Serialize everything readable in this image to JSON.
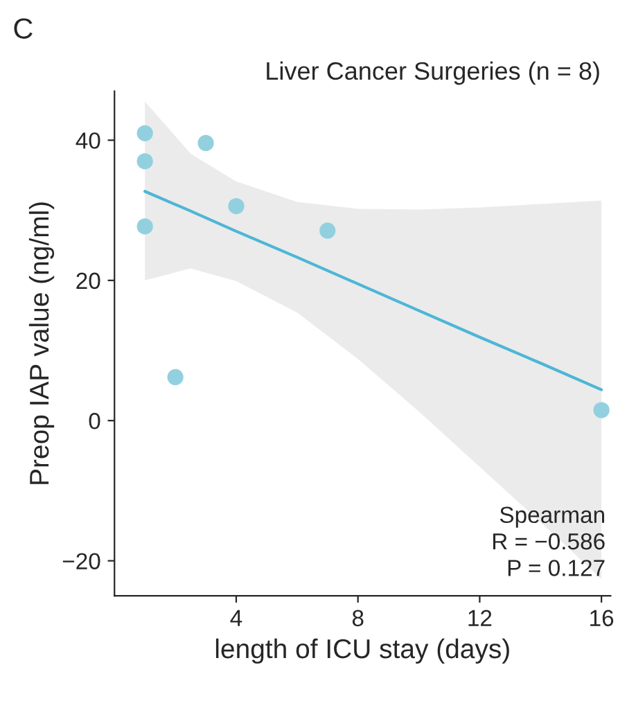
{
  "chart_data": {
    "type": "scatter",
    "title": "Liver Cancer Surgeries (n = 8)",
    "xlabel": "length of ICU stay (days)",
    "ylabel": "Preop IAP value (ng/ml)",
    "series": [
      {
        "color": "#92d0df",
        "x": [
          1,
          1,
          1,
          2,
          3,
          4,
          7,
          16
        ],
        "values": [
          41,
          37,
          27.7,
          6.2,
          39.6,
          30.6,
          27.1,
          1.5
        ]
      },
      {
        "type": "line",
        "marker": "none",
        "color": "#4db6d6",
        "x": [
          1,
          2.5,
          4,
          6,
          8,
          10,
          12,
          14,
          16
        ],
        "values": [
          32.7,
          29.9,
          27.0,
          23.3,
          19.5,
          15.7,
          11.9,
          8.2,
          4.4
        ],
        "lower": [
          20.0,
          21.7,
          19.9,
          15.4,
          8.8,
          1.3,
          -6.6,
          -14.5,
          -22.6
        ],
        "upper": [
          45.5,
          38.1,
          34.1,
          31.2,
          30.2,
          30.1,
          30.4,
          30.9,
          31.4
        ]
      }
    ],
    "xlim": [
      0,
      16.3
    ],
    "xticks": [
      4,
      8,
      12,
      16
    ],
    "ylim": [
      -25,
      47
    ],
    "yticks": [
      -20,
      0,
      20,
      40
    ],
    "grid": false,
    "marker": "circle",
    "annotations": [
      "C",
      "Spearman\nR = −0.586\nP = 0.127"
    ]
  }
}
